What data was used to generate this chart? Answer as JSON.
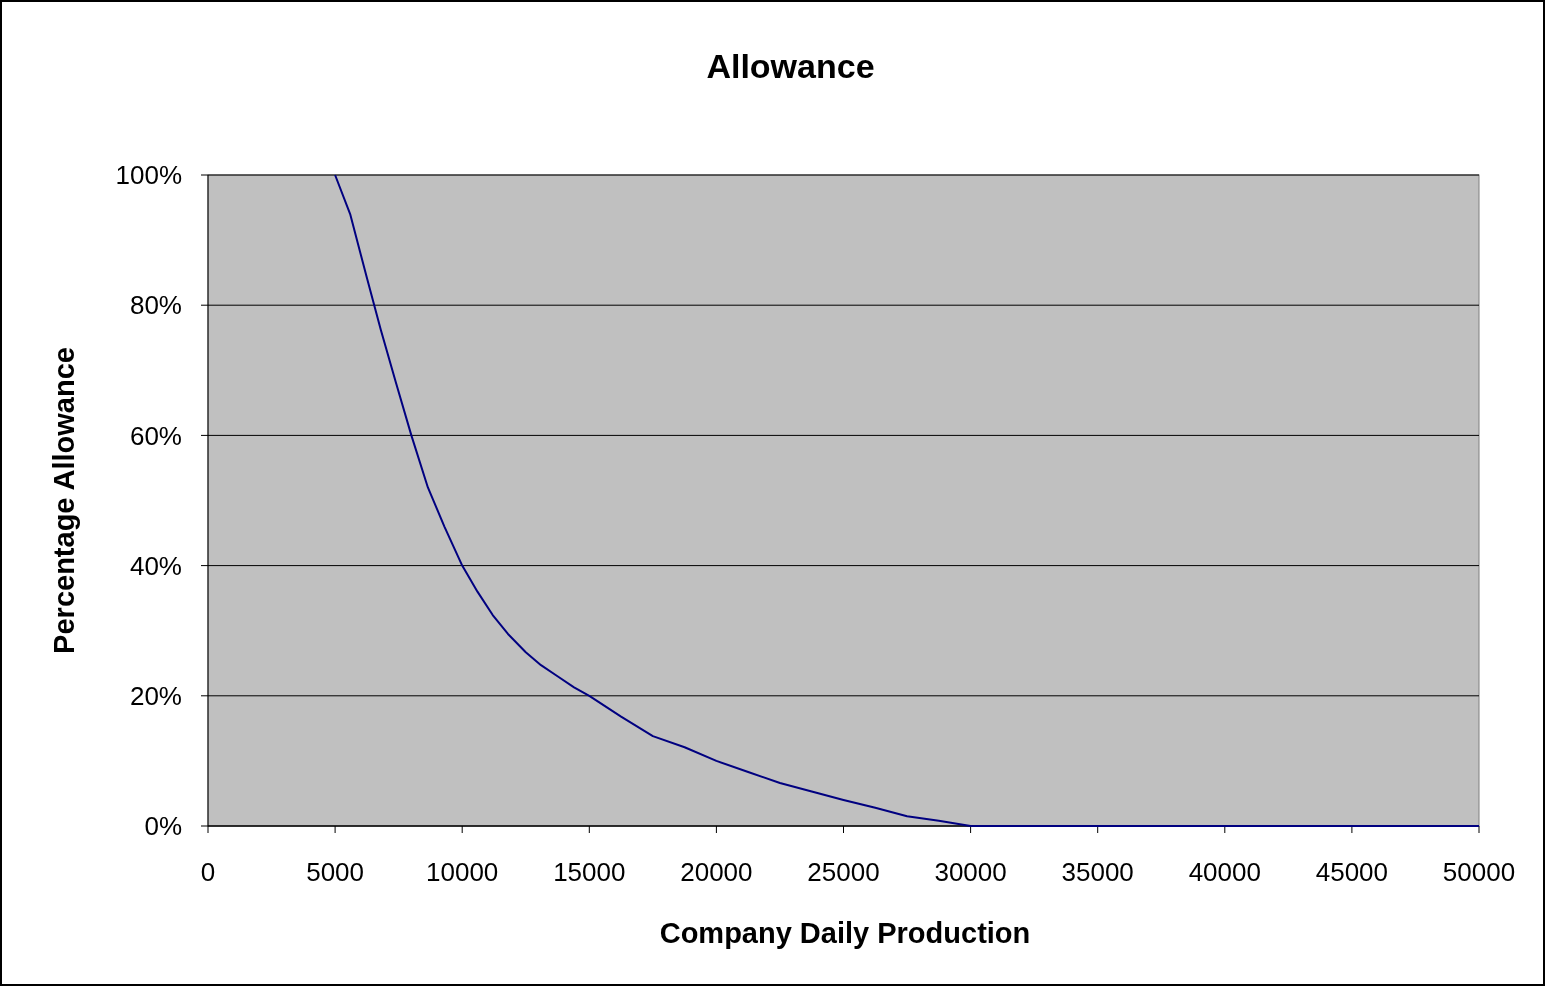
{
  "chart_data": {
    "type": "line",
    "title": "Allowance",
    "xlabel": "Company Daily Production",
    "ylabel": "Percentage Allowance",
    "x": [
      5000,
      5600,
      6250,
      6800,
      7400,
      8000,
      8650,
      9300,
      10000,
      10600,
      11200,
      11800,
      12500,
      13100,
      13750,
      14400,
      15000,
      16250,
      17500,
      18750,
      20000,
      21250,
      22500,
      23750,
      25000,
      26250,
      27500,
      28750,
      30000,
      35000,
      40000,
      45000,
      50000
    ],
    "series": [
      {
        "color": "#000080",
        "values": [
          100,
          93.9,
          84.2,
          76.2,
          68,
          60,
          52,
          46,
          40,
          36,
          32.4,
          29.5,
          26.7,
          24.7,
          23,
          21.3,
          20,
          16.8,
          13.8,
          12.1,
          10,
          8.3,
          6.6,
          5.3,
          4,
          2.8,
          1.5,
          0.8,
          0,
          0,
          0,
          0,
          0
        ]
      }
    ],
    "xlim": [
      0,
      50000
    ],
    "ylim": [
      0,
      100
    ],
    "xticks": [
      0,
      5000,
      10000,
      15000,
      20000,
      25000,
      30000,
      35000,
      40000,
      45000,
      50000
    ],
    "yticks": [
      {
        "value": 0,
        "label": "0%"
      },
      {
        "value": 20,
        "label": "20%"
      },
      {
        "value": 40,
        "label": "40%"
      },
      {
        "value": 60,
        "label": "60%"
      },
      {
        "value": 80,
        "label": "80%"
      },
      {
        "value": 100,
        "label": "100%"
      }
    ],
    "grid": "y",
    "marker": "none",
    "line_style": "solid"
  }
}
